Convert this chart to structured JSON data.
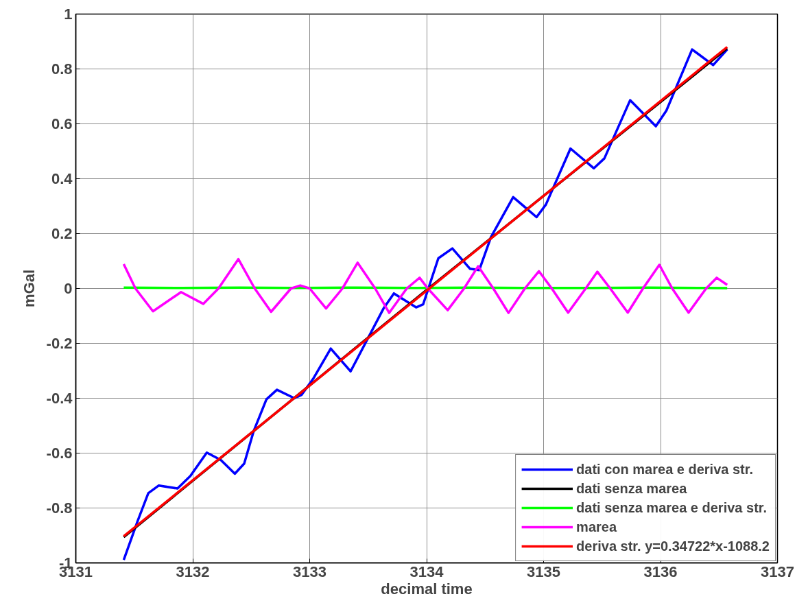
{
  "chart_data": {
    "type": "line",
    "xlabel": "decimal time",
    "ylabel": "mGal",
    "xlim": [
      3131,
      3137
    ],
    "ylim": [
      -1,
      1
    ],
    "xticks": [
      3131,
      3132,
      3133,
      3134,
      3135,
      3136,
      3137
    ],
    "yticks": [
      -1,
      -0.8,
      -0.6,
      -0.4,
      -0.2,
      0,
      0.2,
      0.4,
      0.6,
      0.8,
      1
    ],
    "grid": true,
    "legend": "bottom right",
    "line_style": "solid",
    "marker": "none",
    "series": [
      {
        "name": "dati con marea e deriva str.",
        "color": "#0000ff",
        "x": [
          3131.41,
          3131.53,
          3131.62,
          3131.71,
          3131.87,
          3131.98,
          3132.12,
          3132.24,
          3132.36,
          3132.44,
          3132.52,
          3132.63,
          3132.72,
          3132.87,
          3132.93,
          3133.03,
          3133.18,
          3133.35,
          3133.63,
          3133.72,
          3133.91,
          3133.97,
          3134.1,
          3134.22,
          3134.37,
          3134.45,
          3134.55,
          3134.74,
          3134.94,
          3135.02,
          3135.23,
          3135.43,
          3135.52,
          3135.74,
          3135.96,
          3136.05,
          3136.27,
          3136.45,
          3136.57
        ],
        "values": [
          -0.989,
          -0.846,
          -0.746,
          -0.718,
          -0.729,
          -0.683,
          -0.598,
          -0.625,
          -0.675,
          -0.638,
          -0.521,
          -0.404,
          -0.369,
          -0.4,
          -0.388,
          -0.329,
          -0.219,
          -0.302,
          -0.074,
          -0.018,
          -0.069,
          -0.058,
          0.11,
          0.146,
          0.072,
          0.067,
          0.187,
          0.333,
          0.26,
          0.306,
          0.51,
          0.438,
          0.474,
          0.686,
          0.591,
          0.648,
          0.871,
          0.814,
          0.871
        ]
      },
      {
        "name": "dati senza marea",
        "color": "#000000",
        "x": [
          3131.41,
          3134.0,
          3136.57
        ],
        "values": [
          -0.906,
          -0.005,
          0.875
        ]
      },
      {
        "name": "dati senza marea e deriva str.",
        "color": "#00ff00",
        "x": [
          3131.41,
          3131.9,
          3132.4,
          3132.9,
          3133.4,
          3133.9,
          3134.4,
          3134.9,
          3135.4,
          3135.9,
          3136.4,
          3136.57
        ],
        "values": [
          0.003,
          0.002,
          0.003,
          0.002,
          0.003,
          0.002,
          0.003,
          0.002,
          0.002,
          0.003,
          0.002,
          0.001
        ]
      },
      {
        "name": "marea",
        "color": "#ff00ff",
        "x": [
          3131.41,
          3131.51,
          3131.66,
          3131.9,
          3132.09,
          3132.22,
          3132.39,
          3132.53,
          3132.67,
          3132.84,
          3132.92,
          3133.0,
          3133.14,
          3133.28,
          3133.41,
          3133.56,
          3133.68,
          3133.83,
          3133.94,
          3134.01,
          3134.18,
          3134.32,
          3134.44,
          3134.57,
          3134.7,
          3134.84,
          3134.96,
          3135.07,
          3135.21,
          3135.36,
          3135.46,
          3135.57,
          3135.72,
          3135.85,
          3135.99,
          3136.1,
          3136.24,
          3136.39,
          3136.48,
          3136.57
        ],
        "values": [
          0.089,
          0.0,
          -0.083,
          -0.013,
          -0.056,
          0.0,
          0.107,
          0.0,
          -0.085,
          0.0,
          0.011,
          0.0,
          -0.073,
          0.0,
          0.094,
          0.0,
          -0.089,
          0.0,
          0.039,
          0.0,
          -0.079,
          0.0,
          0.081,
          0.0,
          -0.089,
          0.0,
          0.063,
          0.0,
          -0.088,
          0.0,
          0.061,
          0.0,
          -0.088,
          0.0,
          0.086,
          0.0,
          -0.088,
          0.0,
          0.039,
          0.013
        ]
      },
      {
        "name": "deriva str. y=0.34722*x-1088.2",
        "color": "#ff0000",
        "x": [
          3131.41,
          3136.57
        ],
        "values": [
          -0.903,
          0.88
        ]
      }
    ]
  }
}
